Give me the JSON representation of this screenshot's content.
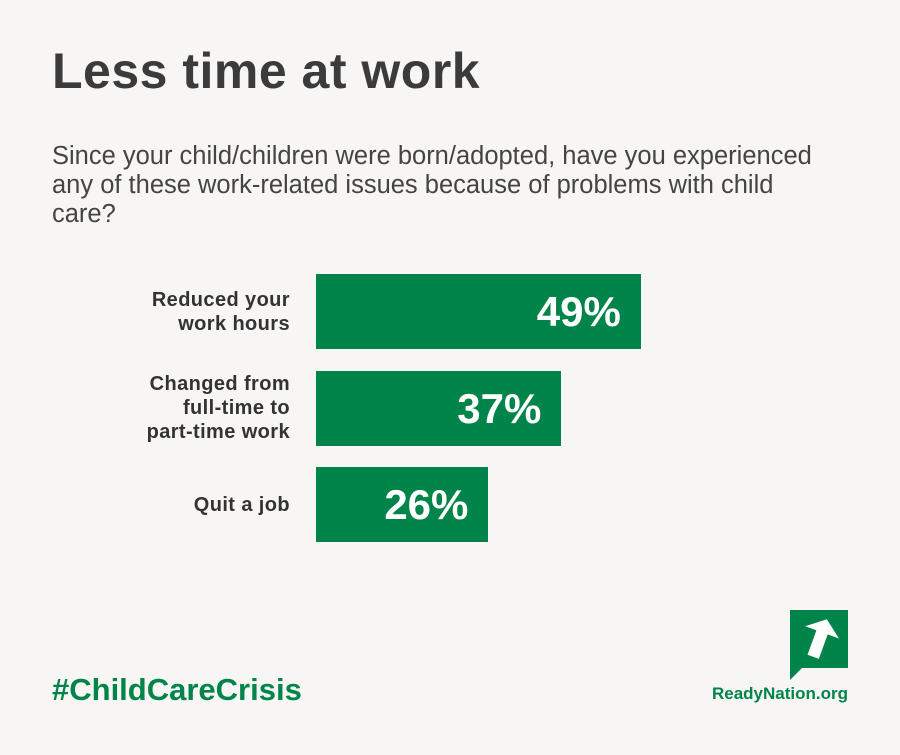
{
  "chart_data": {
    "type": "bar",
    "orientation": "horizontal",
    "title": "Less time at work",
    "subtitle": "Since your child/children were born/adopted, have you experienced any of these work-related issues because of problems with child care?",
    "categories": [
      "Reduced your\nwork hours",
      "Changed from\nfull-time to\npart-time work",
      "Quit a job"
    ],
    "values": [
      49,
      37,
      26
    ],
    "value_labels": [
      "49%",
      "37%",
      "26%"
    ],
    "color": "#00844a",
    "hashtag": "#ChildCareCrisis",
    "source": "ReadyNation.org"
  }
}
